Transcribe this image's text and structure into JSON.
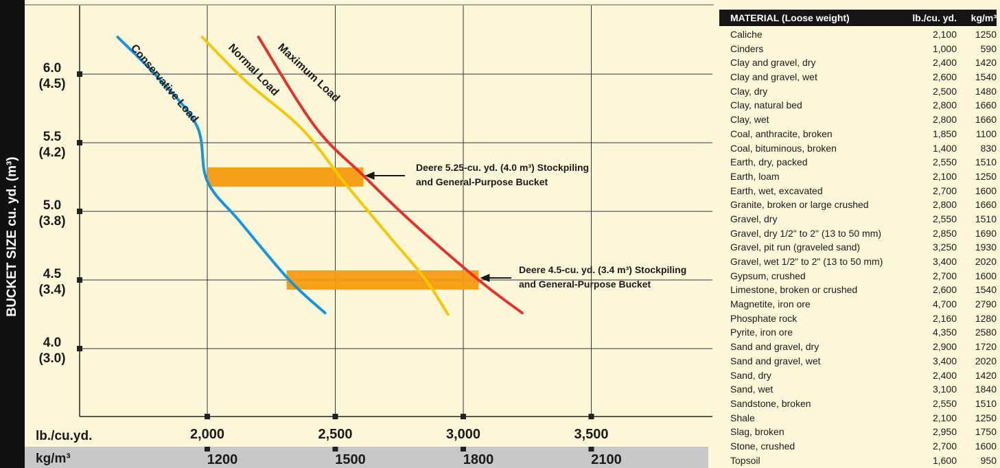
{
  "chart_data": {
    "type": "line",
    "ylabel": "BUCKET SIZE cu. yd. (m³)",
    "y_ticks": [
      {
        "value": 6.0,
        "label": "6.0",
        "sub": "(4.5)"
      },
      {
        "value": 5.5,
        "label": "5.5",
        "sub": "(4.2)"
      },
      {
        "value": 5.0,
        "label": "5.0",
        "sub": "(3.8)"
      },
      {
        "value": 4.5,
        "label": "4.5",
        "sub": "(3.4)"
      },
      {
        "value": 4.0,
        "label": "4.0",
        "sub": "(3.0)"
      }
    ],
    "x_axis_label": "lb./cu.yd.",
    "x_ticks": [
      {
        "value": 2000,
        "label": "2,000"
      },
      {
        "value": 2500,
        "label": "2,500"
      },
      {
        "value": 3000,
        "label": "3,000"
      },
      {
        "value": 3500,
        "label": "3,500"
      }
    ],
    "x2_axis_label": "kg/m³",
    "x2_ticks": [
      {
        "value": 2000,
        "label": "1200"
      },
      {
        "value": 2500,
        "label": "1500"
      },
      {
        "value": 3000,
        "label": "1800"
      },
      {
        "value": 3500,
        "label": "2100"
      }
    ],
    "xlim": [
      1500,
      4000
    ],
    "ylim": [
      3.5,
      6.5
    ],
    "grid": true,
    "series": [
      {
        "name": "Conservative Load",
        "color": "#1296df",
        "points": [
          [
            1650,
            6.27
          ],
          [
            1810,
            5.97
          ],
          [
            1960,
            5.62
          ],
          [
            2000,
            5.22
          ],
          [
            2130,
            4.92
          ],
          [
            2320,
            4.5
          ],
          [
            2460,
            4.26
          ]
        ]
      },
      {
        "name": "Normal Load",
        "color": "#f7c800",
        "points": [
          [
            1980,
            6.27
          ],
          [
            2150,
            5.95
          ],
          [
            2370,
            5.6
          ],
          [
            2540,
            5.2
          ],
          [
            2710,
            4.82
          ],
          [
            2850,
            4.51
          ],
          [
            2940,
            4.25
          ]
        ]
      },
      {
        "name": "Maximum Load",
        "color": "#e8302a",
        "points": [
          [
            2200,
            6.27
          ],
          [
            2420,
            5.62
          ],
          [
            2610,
            5.26
          ],
          [
            2800,
            4.92
          ],
          [
            3060,
            4.5
          ],
          [
            3230,
            4.26
          ]
        ]
      }
    ],
    "highlight_bands": [
      {
        "x_start": 2000,
        "x_end": 2610,
        "y": 5.25,
        "color": "#f59a10",
        "label_lines": [
          "Deere 5.25-cu. yd. (4.0 m³) Stockpiling",
          "and General-Purpose Bucket"
        ]
      },
      {
        "x_start": 2310,
        "x_end": 3060,
        "y": 4.5,
        "color": "#f59a10",
        "label_lines": [
          "Deere 4.5-cu. yd. (3.4 m³) Stockpiling",
          "and General-Purpose Bucket"
        ]
      }
    ]
  },
  "table": {
    "headers": [
      "MATERIAL (Loose weight)",
      "lb./cu. yd.",
      "kg/m³"
    ],
    "rows": [
      [
        "Caliche",
        "2,100",
        "1250"
      ],
      [
        "Cinders",
        "1,000",
        "590"
      ],
      [
        "Clay and gravel, dry",
        "2,400",
        "1420"
      ],
      [
        "Clay and gravel, wet",
        "2,600",
        "1540"
      ],
      [
        "Clay, dry",
        "2,500",
        "1480"
      ],
      [
        "Clay, natural bed",
        "2,800",
        "1660"
      ],
      [
        "Clay, wet",
        "2,800",
        "1660"
      ],
      [
        "Coal, anthracite, broken",
        "1,850",
        "1100"
      ],
      [
        "Coal, bituminous, broken",
        "1,400",
        "830"
      ],
      [
        "Earth, dry, packed",
        "2,550",
        "1510"
      ],
      [
        "Earth, loam",
        "2,100",
        "1250"
      ],
      [
        "Earth, wet, excavated",
        "2,700",
        "1600"
      ],
      [
        "Granite, broken or large crushed",
        "2,800",
        "1660"
      ],
      [
        "Gravel, dry",
        "2,550",
        "1510"
      ],
      [
        "Gravel, dry 1/2\" to 2\" (13 to 50 mm)",
        "2,850",
        "1690"
      ],
      [
        "Gravel, pit run (graveled sand)",
        "3,250",
        "1930"
      ],
      [
        "Gravel, wet 1/2\" to 2\" (13 to 50 mm)",
        "3,400",
        "2020"
      ],
      [
        "Gypsum, crushed",
        "2,700",
        "1600"
      ],
      [
        "Limestone, broken or crushed",
        "2,600",
        "1540"
      ],
      [
        "Magnetite, iron ore",
        "4,700",
        "2790"
      ],
      [
        "Phosphate rock",
        "2,160",
        "1280"
      ],
      [
        "Pyrite, iron ore",
        "4,350",
        "2580"
      ],
      [
        "Sand and gravel, dry",
        "2,900",
        "1720"
      ],
      [
        "Sand and gravel, wet",
        "3,400",
        "2020"
      ],
      [
        "Sand, dry",
        "2,400",
        "1420"
      ],
      [
        "Sand, wet",
        "3,100",
        "1840"
      ],
      [
        "Sandstone, broken",
        "2,550",
        "1510"
      ],
      [
        "Shale",
        "2,100",
        "1250"
      ],
      [
        "Slag, broken",
        "2,950",
        "1750"
      ],
      [
        "Stone, crushed",
        "2,700",
        "1600"
      ],
      [
        "Topsoil",
        "1,600",
        "950"
      ]
    ]
  }
}
